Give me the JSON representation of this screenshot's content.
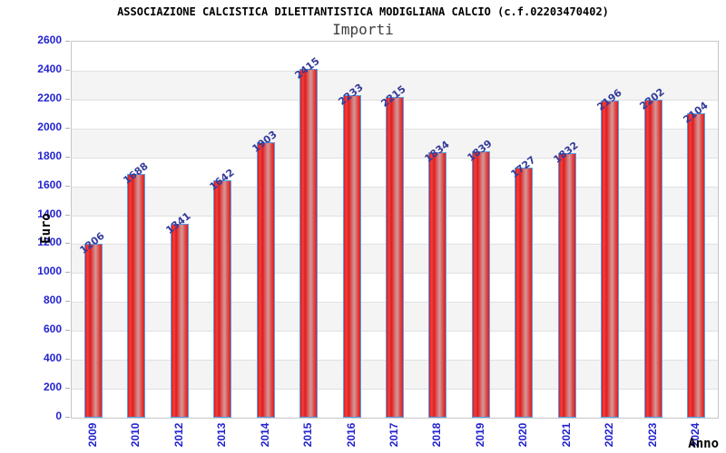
{
  "header": {
    "title": "ASSOCIAZIONE CALCISTICA DILETTANTISTICA MODIGLIANA CALCIO (c.f.02203470402)",
    "subtitle": "Importi"
  },
  "chart_data": {
    "type": "bar",
    "title": "ASSOCIAZIONE CALCISTICA DILETTANTISTICA MODIGLIANA CALCIO (c.f.02203470402)",
    "subtitle": "Importi",
    "xlabel": "Anno",
    "ylabel": "Euro",
    "categories": [
      "2009",
      "2010",
      "2012",
      "2013",
      "2014",
      "2015",
      "2016",
      "2017",
      "2018",
      "2019",
      "2020",
      "2021",
      "2022",
      "2023",
      "2024"
    ],
    "values": [
      1206,
      1688,
      1341,
      1642,
      1903,
      2415,
      2233,
      2215,
      1834,
      1839,
      1727,
      1832,
      2196,
      2202,
      2104
    ],
    "ylim": [
      0,
      2600
    ],
    "y_ticks": [
      0,
      200,
      400,
      600,
      800,
      1000,
      1200,
      1400,
      1600,
      1800,
      2000,
      2200,
      2400,
      2600
    ],
    "grid": true,
    "legend_position": "none",
    "band_fill_alternating": true,
    "colors": {
      "bar_fill": "#e01c1c",
      "bar_mid_highlight": "#d09a9a",
      "bar_border": "#55a0e8",
      "axis_tick_text": "#2323cf",
      "value_label_text": "#353c99",
      "band_gray": "#f4f4f4",
      "gridline": "#e0e0e0"
    }
  }
}
